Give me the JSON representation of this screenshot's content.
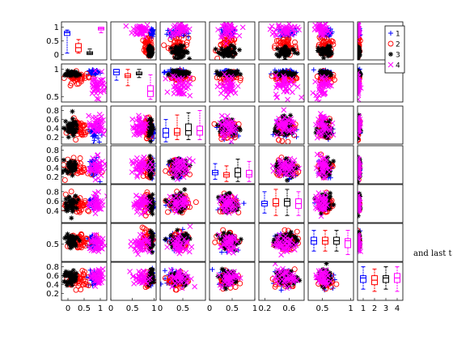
{
  "chart_data": {
    "type": "scatter",
    "layout": "scatter-matrix",
    "rows": 7,
    "cols": 7,
    "diagonal": "boxplot",
    "legend_placement": "top-right",
    "series": [
      {
        "name": "1",
        "marker": "plus",
        "color": "#0000ff"
      },
      {
        "name": "2",
        "marker": "circle",
        "color": "#ff0000"
      },
      {
        "name": "3",
        "marker": "star",
        "color": "#000000"
      },
      {
        "name": "4",
        "marker": "cross",
        "color": "#ff00ff"
      }
    ],
    "variables": [
      {
        "ylim": [
          -0.2,
          1.2
        ],
        "yticks": [
          0,
          0.5,
          1
        ],
        "xlim": [
          -0.2,
          1.2
        ],
        "xticks": [
          0,
          0.5,
          1
        ],
        "box": [
          [
            0.75,
            0.05,
            0.7,
            0.8,
            0.85,
            0.9
          ],
          [
            0.2,
            0.05,
            0.1,
            0.25,
            0.4,
            0.55
          ],
          [
            0.05,
            0.0,
            0.0,
            0.05,
            0.1,
            0.2
          ],
          [
            0.95,
            0.8,
            0.9,
            0.95,
            1.0,
            1.0
          ]
        ],
        "center": [
          0.8,
          0.3,
          0.1,
          0.9
        ],
        "spread": [
          0.15,
          0.35,
          0.2,
          0.25
        ]
      },
      {
        "ylim": [
          0.4,
          1.1
        ],
        "yticks": [
          0.5,
          1
        ],
        "xlim": [
          0,
          1.05
        ],
        "xticks": [
          0,
          0.5,
          1
        ],
        "box": [
          [
            0.95,
            0.8,
            0.9,
            0.95,
            1.0,
            1.0
          ],
          [
            0.88,
            0.7,
            0.85,
            0.88,
            0.92,
            1.0
          ],
          [
            0.9,
            0.85,
            0.9,
            0.92,
            0.95,
            1.0
          ],
          [
            0.6,
            0.45,
            0.5,
            0.6,
            0.7,
            0.9
          ]
        ],
        "center": [
          0.95,
          0.85,
          0.92,
          0.7
        ],
        "spread": [
          0.04,
          0.1,
          0.05,
          0.2
        ]
      },
      {
        "ylim": [
          0.05,
          0.9
        ],
        "yticks": [
          0.2,
          0.4,
          0.6,
          0.8
        ],
        "xlim": [
          0,
          1
        ],
        "xticks": [
          0,
          0.5
        ],
        "box": [
          [
            0.3,
            0.1,
            0.2,
            0.3,
            0.4,
            0.6
          ],
          [
            0.3,
            0.15,
            0.25,
            0.3,
            0.4,
            0.7
          ],
          [
            0.35,
            0.15,
            0.25,
            0.35,
            0.5,
            0.75
          ],
          [
            0.35,
            0.15,
            0.25,
            0.35,
            0.45,
            0.8
          ]
        ],
        "center": [
          0.35,
          0.4,
          0.42,
          0.45
        ],
        "spread": [
          0.2,
          0.22,
          0.2,
          0.22
        ]
      },
      {
        "ylim": [
          0.05,
          0.9
        ],
        "yticks": [
          0.2,
          0.4,
          0.6,
          0.8
        ],
        "xlim": [
          0,
          1
        ],
        "xticks": [
          0,
          0.5,
          1
        ],
        "box": [
          [
            0.3,
            0.15,
            0.25,
            0.3,
            0.35,
            0.5
          ],
          [
            0.25,
            0.1,
            0.2,
            0.25,
            0.3,
            0.45
          ],
          [
            0.3,
            0.1,
            0.2,
            0.3,
            0.4,
            0.6
          ],
          [
            0.25,
            0.1,
            0.2,
            0.25,
            0.35,
            0.55
          ]
        ],
        "center": [
          0.4,
          0.4,
          0.42,
          0.42
        ],
        "spread": [
          0.2,
          0.2,
          0.2,
          0.2
        ]
      },
      {
        "ylim": [
          0.15,
          0.95
        ],
        "yticks": [
          0.4,
          0.6,
          0.8
        ],
        "xlim": [
          0.1,
          0.85
        ],
        "xticks": [
          0.2,
          0.6
        ],
        "box": [
          [
            0.55,
            0.35,
            0.5,
            0.55,
            0.6,
            0.8
          ],
          [
            0.55,
            0.3,
            0.5,
            0.55,
            0.65,
            0.85
          ],
          [
            0.6,
            0.3,
            0.5,
            0.6,
            0.65,
            0.85
          ],
          [
            0.55,
            0.3,
            0.45,
            0.55,
            0.65,
            0.8
          ]
        ],
        "center": [
          0.55,
          0.55,
          0.55,
          0.55
        ],
        "spread": [
          0.15,
          0.18,
          0.18,
          0.18
        ]
      },
      {
        "ylim": [
          0.25,
          0.8
        ],
        "yticks": [
          0.5
        ],
        "xlim": [
          0.25,
          1.05
        ],
        "xticks": [
          0.5,
          1
        ],
        "box": [
          [
            0.55,
            0.4,
            0.5,
            0.55,
            0.6,
            0.7
          ],
          [
            0.55,
            0.4,
            0.5,
            0.55,
            0.6,
            0.7
          ],
          [
            0.55,
            0.4,
            0.5,
            0.55,
            0.6,
            0.7
          ],
          [
            0.5,
            0.35,
            0.45,
            0.55,
            0.58,
            0.7
          ]
        ],
        "center": [
          0.55,
          0.55,
          0.55,
          0.5
        ],
        "spread": [
          0.12,
          0.12,
          0.12,
          0.12
        ]
      },
      {
        "ylim": [
          0.05,
          0.9
        ],
        "yticks": [
          0.2,
          0.4,
          0.6,
          0.8
        ],
        "xlim": [
          0.5,
          4.5
        ],
        "xticks": [
          1,
          2,
          3,
          4
        ],
        "xtick_labels": [
          "1",
          "2",
          "3",
          "4"
        ],
        "box": [
          [
            0.55,
            0.3,
            0.45,
            0.55,
            0.6,
            0.8
          ],
          [
            0.5,
            0.25,
            0.4,
            0.5,
            0.6,
            0.75
          ],
          [
            0.55,
            0.3,
            0.45,
            0.55,
            0.6,
            0.8
          ],
          [
            0.55,
            0.25,
            0.45,
            0.55,
            0.65,
            0.8
          ]
        ],
        "center": [
          0.55,
          0.5,
          0.55,
          0.55
        ],
        "spread": [
          0.18,
          0.18,
          0.18,
          0.18
        ]
      }
    ],
    "points_per_series": 45,
    "side_text": "and last t"
  }
}
